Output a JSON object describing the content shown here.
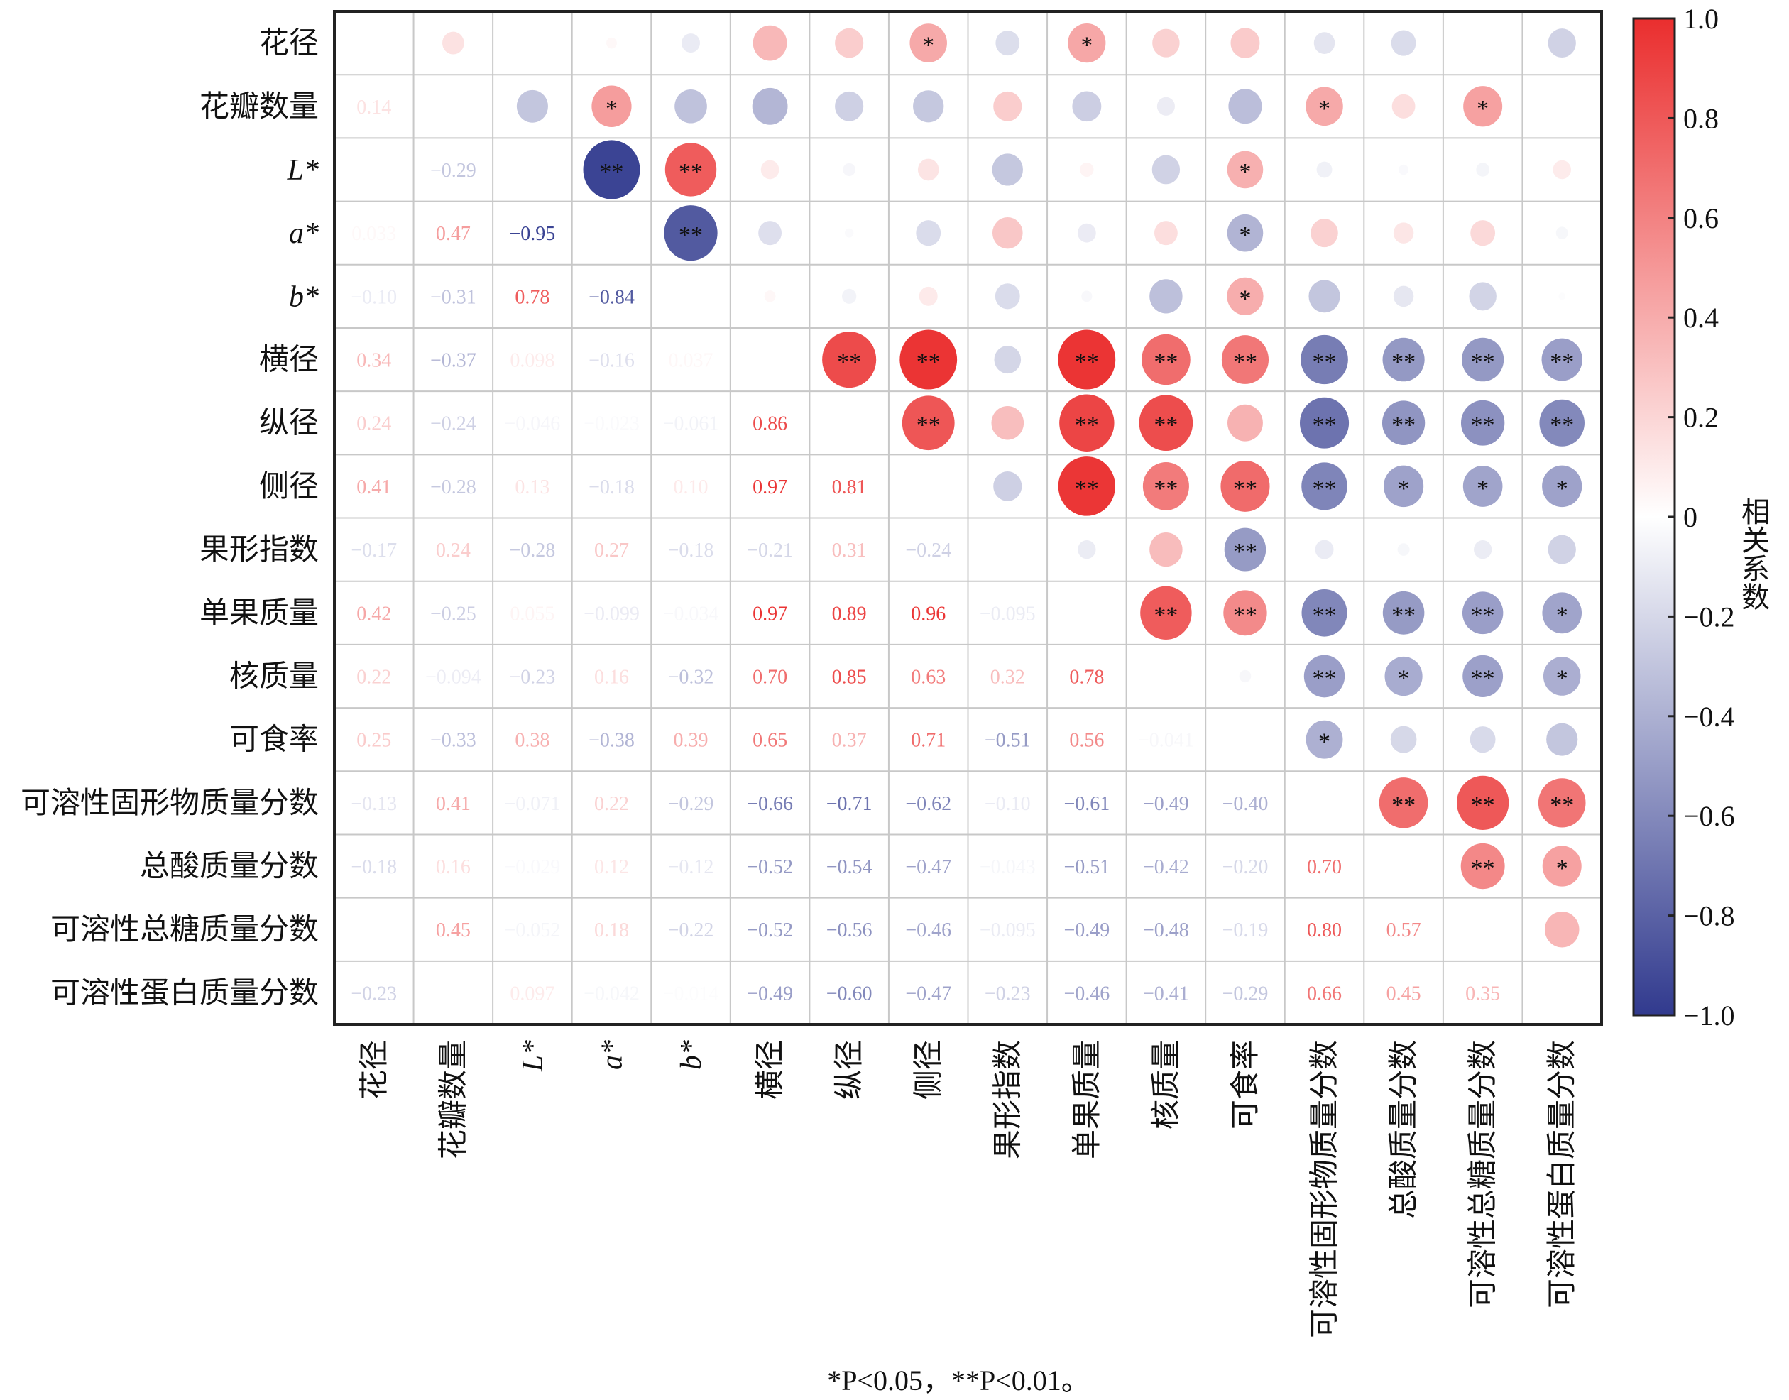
{
  "chart_data": {
    "type": "heatmap",
    "subtype": "correlation-matrix (lower: coefficients, upper: circles with significance marks)",
    "variables": [
      "花径",
      "花瓣数量",
      "L*",
      "a*",
      "b*",
      "横径",
      "纵径",
      "侧径",
      "果形指数",
      "单果质量",
      "核质量",
      "可食率",
      "可溶性固形物质量分数",
      "总酸质量分数",
      "可溶性总糖质量分数",
      "可溶性蛋白质量分数"
    ],
    "italic_variables": [
      "L*",
      "a*",
      "b*"
    ],
    "lower_triangle": [
      [],
      [
        0.14
      ],
      [
        null,
        -0.29
      ],
      [
        0.033,
        0.47,
        -0.95
      ],
      [
        -0.1,
        -0.31,
        0.78,
        -0.84
      ],
      [
        0.34,
        -0.37,
        0.098,
        -0.16,
        0.037
      ],
      [
        0.24,
        -0.24,
        -0.046,
        -0.023,
        -0.061,
        0.86
      ],
      [
        0.41,
        -0.28,
        0.13,
        -0.18,
        0.1,
        0.97,
        0.81
      ],
      [
        -0.17,
        0.24,
        -0.28,
        0.27,
        -0.18,
        -0.21,
        0.31,
        -0.24
      ],
      [
        0.42,
        -0.25,
        0.055,
        -0.099,
        -0.034,
        0.97,
        0.89,
        0.96,
        -0.095
      ],
      [
        0.22,
        -0.094,
        -0.23,
        0.16,
        -0.32,
        0.7,
        0.85,
        0.63,
        0.32,
        0.78
      ],
      [
        0.25,
        -0.33,
        0.38,
        -0.38,
        0.39,
        0.65,
        0.37,
        0.71,
        -0.51,
        0.56,
        -0.041
      ],
      [
        -0.13,
        0.41,
        -0.071,
        0.22,
        -0.29,
        -0.66,
        -0.71,
        -0.62,
        -0.1,
        -0.61,
        -0.49,
        -0.4
      ],
      [
        -0.18,
        0.16,
        -0.029,
        0.12,
        -0.12,
        -0.52,
        -0.54,
        -0.47,
        -0.043,
        -0.51,
        -0.42,
        -0.2,
        0.7
      ],
      [
        null,
        0.45,
        -0.052,
        0.18,
        -0.22,
        -0.52,
        -0.56,
        -0.46,
        -0.095,
        -0.49,
        -0.48,
        -0.19,
        0.8,
        0.57
      ],
      [
        -0.23,
        null,
        0.097,
        -0.042,
        -0.014,
        -0.49,
        -0.6,
        -0.47,
        -0.23,
        -0.46,
        -0.41,
        -0.29,
        0.66,
        0.45,
        0.35
      ]
    ],
    "significance": [
      {
        "row": 0,
        "col": 7,
        "mark": "*"
      },
      {
        "row": 0,
        "col": 9,
        "mark": "*"
      },
      {
        "row": 1,
        "col": 3,
        "mark": "*"
      },
      {
        "row": 1,
        "col": 12,
        "mark": "*"
      },
      {
        "row": 1,
        "col": 14,
        "mark": "*"
      },
      {
        "row": 2,
        "col": 3,
        "mark": "**"
      },
      {
        "row": 2,
        "col": 4,
        "mark": "**"
      },
      {
        "row": 2,
        "col": 11,
        "mark": "*"
      },
      {
        "row": 3,
        "col": 4,
        "mark": "**"
      },
      {
        "row": 3,
        "col": 11,
        "mark": "*"
      },
      {
        "row": 4,
        "col": 11,
        "mark": "*"
      },
      {
        "row": 5,
        "col": 6,
        "mark": "**"
      },
      {
        "row": 5,
        "col": 7,
        "mark": "**"
      },
      {
        "row": 5,
        "col": 9,
        "mark": "**"
      },
      {
        "row": 5,
        "col": 10,
        "mark": "**"
      },
      {
        "row": 5,
        "col": 11,
        "mark": "**"
      },
      {
        "row": 5,
        "col": 12,
        "mark": "**"
      },
      {
        "row": 5,
        "col": 13,
        "mark": "**"
      },
      {
        "row": 5,
        "col": 14,
        "mark": "**"
      },
      {
        "row": 5,
        "col": 15,
        "mark": "**"
      },
      {
        "row": 6,
        "col": 7,
        "mark": "**"
      },
      {
        "row": 6,
        "col": 9,
        "mark": "**"
      },
      {
        "row": 6,
        "col": 10,
        "mark": "**"
      },
      {
        "row": 6,
        "col": 12,
        "mark": "**"
      },
      {
        "row": 6,
        "col": 13,
        "mark": "**"
      },
      {
        "row": 6,
        "col": 14,
        "mark": "**"
      },
      {
        "row": 6,
        "col": 15,
        "mark": "**"
      },
      {
        "row": 7,
        "col": 9,
        "mark": "**"
      },
      {
        "row": 7,
        "col": 10,
        "mark": "**"
      },
      {
        "row": 7,
        "col": 11,
        "mark": "**"
      },
      {
        "row": 7,
        "col": 12,
        "mark": "**"
      },
      {
        "row": 7,
        "col": 13,
        "mark": "*"
      },
      {
        "row": 7,
        "col": 14,
        "mark": "*"
      },
      {
        "row": 7,
        "col": 15,
        "mark": "*"
      },
      {
        "row": 8,
        "col": 11,
        "mark": "**"
      },
      {
        "row": 9,
        "col": 10,
        "mark": "**"
      },
      {
        "row": 9,
        "col": 11,
        "mark": "**"
      },
      {
        "row": 9,
        "col": 12,
        "mark": "**"
      },
      {
        "row": 9,
        "col": 13,
        "mark": "**"
      },
      {
        "row": 9,
        "col": 14,
        "mark": "**"
      },
      {
        "row": 9,
        "col": 15,
        "mark": "*"
      },
      {
        "row": 10,
        "col": 12,
        "mark": "**"
      },
      {
        "row": 10,
        "col": 13,
        "mark": "*"
      },
      {
        "row": 10,
        "col": 14,
        "mark": "**"
      },
      {
        "row": 10,
        "col": 15,
        "mark": "*"
      },
      {
        "row": 11,
        "col": 12,
        "mark": "*"
      },
      {
        "row": 12,
        "col": 13,
        "mark": "**"
      },
      {
        "row": 12,
        "col": 14,
        "mark": "**"
      },
      {
        "row": 12,
        "col": 15,
        "mark": "**"
      },
      {
        "row": 13,
        "col": 14,
        "mark": "**"
      },
      {
        "row": 13,
        "col": 15,
        "mark": "*"
      }
    ],
    "colorbar": {
      "label": "相关系数",
      "range": [
        -1.0,
        1.0
      ],
      "ticks": [
        "1.0",
        "0.8",
        "0.6",
        "0.4",
        "0.2",
        "0",
        "−0.2",
        "−0.4",
        "−0.6",
        "−0.8",
        "−1.0"
      ],
      "tick_values": [
        1.0,
        0.8,
        0.6,
        0.4,
        0.2,
        0,
        -0.2,
        -0.4,
        -0.6,
        -0.8,
        -1.0
      ]
    },
    "colors": {
      "negative": "#313a8e",
      "zero": "#ffffff",
      "positive": "#ea2e2e",
      "grid": "#c8c8c8",
      "frame": "#222222"
    },
    "footnote": "*P<0.05，**P<0.01。"
  }
}
